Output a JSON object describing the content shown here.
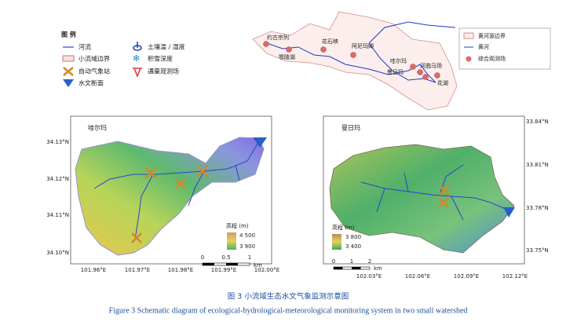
{
  "legend": {
    "title": "图 例",
    "items": [
      "河流",
      "小流域边界",
      "自动气象站",
      "水文断面",
      "土壤温 / 湿度",
      "积雪深度",
      "通量观测场"
    ]
  },
  "overview": {
    "places": [
      "约古宗列",
      "花石峡",
      "阿尼玛卿",
      "鄂陵湖",
      "哇尔玛",
      "河曲马场",
      "曼日玛",
      "花湖"
    ],
    "legend": [
      "黄河源边界",
      "黄河",
      "综合观测场"
    ]
  },
  "left_map": {
    "title": "哇尔玛",
    "lat_labels": [
      "34.13°N",
      "34.12°N",
      "34.11°N",
      "34.10°N"
    ],
    "lon_labels": [
      "101.96°E",
      "101.97°E",
      "101.98°E",
      "101.99°E",
      "102.00°E"
    ],
    "elev_title": "高程 (m)",
    "elev_labels": [
      "4 500",
      "3 900"
    ],
    "scale_labels": [
      "0",
      "0.5",
      "1",
      "km"
    ]
  },
  "right_map": {
    "title": "曼日玛",
    "lat_labels": [
      "33.84°N",
      "33.81°N",
      "33.78°N",
      "33.75°N"
    ],
    "lon_labels": [
      "102.03°E",
      "102.06°E",
      "102.09°E",
      "102.12°E"
    ],
    "elev_title": "高程 (m)",
    "elev_labels": [
      "3 800",
      "3 400"
    ],
    "scale_labels": [
      "0",
      "1",
      "2",
      "km"
    ]
  },
  "caption": {
    "cn": "图 3    小流域生态水文气象监测示意图",
    "en": "Figure 3    Schematic diagram of ecological-hydrological-meteorological monitoring system in two small watershed"
  }
}
